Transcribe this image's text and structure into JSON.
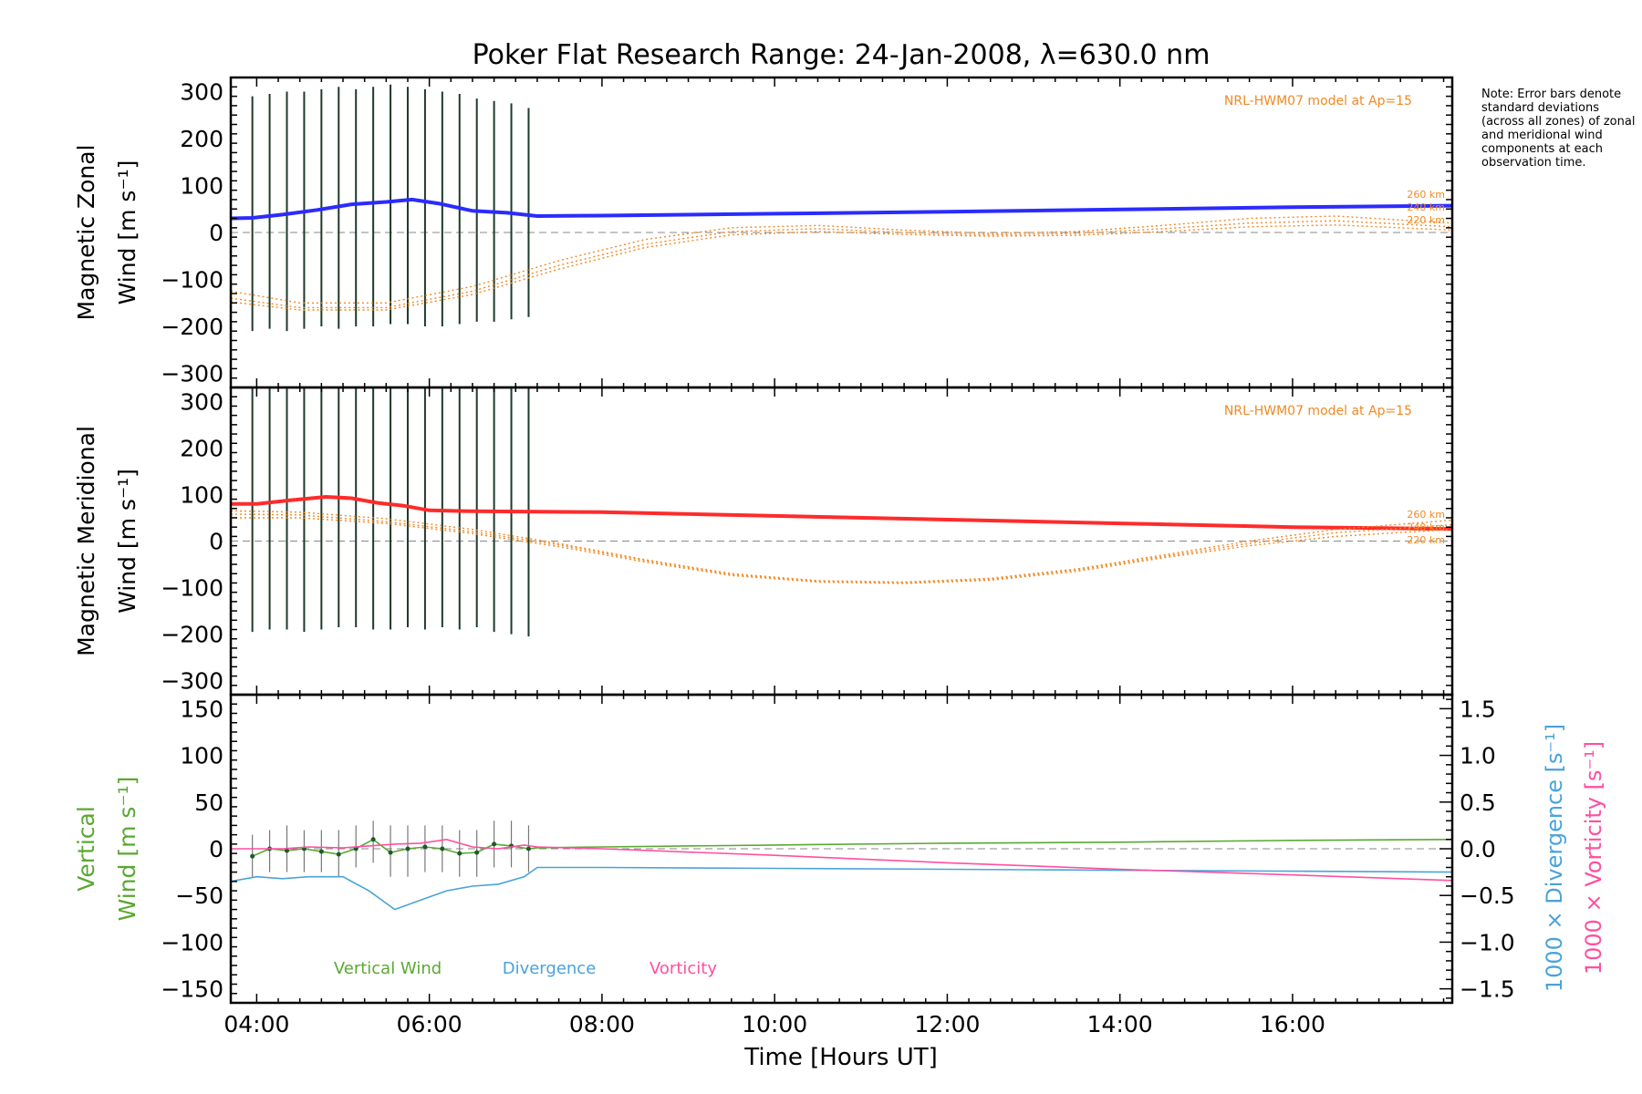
{
  "title": "Poker Flat Research Range: 24-Jan-2008, λ=630.0 nm",
  "note": "Note: Error bars denote standard deviations (across all zones) of zonal and meridional wind components at each observation time.",
  "colors": {
    "zonal": "#2b2bff",
    "meridional": "#ff2b2b",
    "model": "#f08a24",
    "vertical": "#5aa832",
    "divergence": "#4aa3d8",
    "vorticity": "#ff4fa0",
    "errorbar": "#1f3a2a",
    "zero": "#888888"
  },
  "xaxis": {
    "label": "Time [Hours UT]",
    "range": [
      3.7,
      17.85
    ],
    "ticks": [
      4,
      6,
      8,
      10,
      12,
      14,
      16
    ],
    "tick_labels": [
      "04:00",
      "06:00",
      "08:00",
      "10:00",
      "12:00",
      "14:00",
      "16:00"
    ]
  },
  "chart_data": [
    {
      "type": "line",
      "panel": "zonal",
      "ylabel_line1": "Magnetic Zonal",
      "ylabel_line2": "Wind [m s⁻¹]",
      "ylim": [
        -330,
        330
      ],
      "yticks": [
        -300,
        -200,
        -100,
        0,
        100,
        200,
        300
      ],
      "ytick_labels": [
        "−300",
        "−200",
        "−100",
        "0",
        "100",
        "200",
        "300"
      ],
      "model_label": "NRL-HWM07 model at Ap=15",
      "altitude_labels": [
        "260 km",
        "240 km",
        "220 km"
      ],
      "series": [
        {
          "key": "zonal",
          "x": [
            3.7,
            3.95,
            4.3,
            4.7,
            5.1,
            5.5,
            5.8,
            6.1,
            6.5,
            6.9,
            7.25,
            8,
            10,
            12,
            14,
            16,
            17.85
          ],
          "y": [
            30,
            31,
            38,
            48,
            60,
            65,
            70,
            62,
            46,
            42,
            35,
            36,
            40,
            44,
            49,
            54,
            57
          ]
        },
        {
          "key": "model_260",
          "x": [
            3.7,
            4.5,
            5.5,
            6.5,
            7.5,
            8.5,
            9.5,
            10.5,
            11.5,
            12.5,
            13.5,
            14.5,
            15.5,
            16.5,
            17.85
          ],
          "y": [
            -125,
            -150,
            -150,
            -115,
            -60,
            -15,
            10,
            15,
            5,
            -2,
            2,
            15,
            30,
            35,
            20
          ]
        },
        {
          "key": "model_240",
          "x": [
            3.7,
            4.5,
            5.5,
            6.5,
            7.5,
            8.5,
            9.5,
            10.5,
            11.5,
            12.5,
            13.5,
            14.5,
            15.5,
            16.5,
            17.85
          ],
          "y": [
            -140,
            -160,
            -160,
            -125,
            -70,
            -25,
            2,
            8,
            0,
            -5,
            -2,
            8,
            20,
            25,
            12
          ]
        },
        {
          "key": "model_220",
          "x": [
            3.7,
            4.5,
            5.5,
            6.5,
            7.5,
            8.5,
            9.5,
            10.5,
            11.5,
            12.5,
            13.5,
            14.5,
            15.5,
            16.5,
            17.85
          ],
          "y": [
            -148,
            -165,
            -165,
            -132,
            -78,
            -32,
            -5,
            2,
            -4,
            -8,
            -6,
            2,
            12,
            16,
            5
          ]
        }
      ],
      "errorbars": {
        "x": [
          3.95,
          4.15,
          4.35,
          4.55,
          4.75,
          4.95,
          5.15,
          5.35,
          5.55,
          5.75,
          5.95,
          6.15,
          6.35,
          6.55,
          6.75,
          6.95,
          7.15
        ],
        "low": [
          -210,
          -205,
          -210,
          -205,
          -200,
          -205,
          -200,
          -200,
          -195,
          -195,
          -200,
          -200,
          -195,
          -190,
          -190,
          -185,
          -180
        ],
        "high": [
          290,
          295,
          300,
          300,
          305,
          310,
          305,
          310,
          315,
          310,
          305,
          300,
          295,
          285,
          280,
          275,
          265
        ]
      }
    },
    {
      "type": "line",
      "panel": "meridional",
      "ylabel_line1": "Magnetic Meridional",
      "ylabel_line2": "Wind [m s⁻¹]",
      "ylim": [
        -330,
        330
      ],
      "yticks": [
        -300,
        -200,
        -100,
        0,
        100,
        200,
        300
      ],
      "ytick_labels": [
        "−300",
        "−200",
        "−100",
        "0",
        "100",
        "200",
        "300"
      ],
      "model_label": "NRL-HWM07 model at Ap=15",
      "altitude_labels": [
        "260 km",
        "240 km",
        "220 km"
      ],
      "series": [
        {
          "key": "meridional",
          "x": [
            3.7,
            4.0,
            4.4,
            4.8,
            5.1,
            5.4,
            5.7,
            6.0,
            6.5,
            7.25,
            8,
            10,
            12,
            14,
            16,
            17.85
          ],
          "y": [
            80,
            80,
            88,
            95,
            92,
            82,
            76,
            66,
            64,
            63,
            62,
            54,
            46,
            38,
            30,
            26
          ]
        },
        {
          "key": "model_260",
          "x": [
            3.7,
            4.5,
            5.5,
            6.5,
            7.5,
            8.5,
            9.5,
            10.5,
            11.5,
            12.5,
            13.5,
            14.5,
            15.5,
            16.5,
            17.85
          ],
          "y": [
            65,
            62,
            48,
            25,
            -5,
            -40,
            -70,
            -85,
            -88,
            -80,
            -60,
            -30,
            0,
            25,
            45
          ]
        },
        {
          "key": "model_240",
          "x": [
            3.7,
            4.5,
            5.5,
            6.5,
            7.5,
            8.5,
            9.5,
            10.5,
            11.5,
            12.5,
            13.5,
            14.5,
            15.5,
            16.5,
            17.85
          ],
          "y": [
            58,
            56,
            42,
            20,
            -8,
            -42,
            -72,
            -87,
            -90,
            -82,
            -62,
            -33,
            -5,
            18,
            35
          ]
        },
        {
          "key": "model_220",
          "x": [
            3.7,
            4.5,
            5.5,
            6.5,
            7.5,
            8.5,
            9.5,
            10.5,
            11.5,
            12.5,
            13.5,
            14.5,
            15.5,
            16.5,
            17.85
          ],
          "y": [
            50,
            50,
            38,
            16,
            -12,
            -45,
            -74,
            -88,
            -91,
            -84,
            -65,
            -36,
            -10,
            10,
            25
          ]
        }
      ],
      "errorbars": {
        "x": [
          3.95,
          4.15,
          4.35,
          4.55,
          4.75,
          4.95,
          5.15,
          5.35,
          5.55,
          5.75,
          5.95,
          6.15,
          6.35,
          6.55,
          6.75,
          6.95,
          7.15
        ],
        "low": [
          -195,
          -190,
          -190,
          -195,
          -190,
          -185,
          -185,
          -190,
          -190,
          -185,
          -190,
          -185,
          -190,
          -185,
          -195,
          -200,
          -205
        ],
        "high": [
          330,
          330,
          330,
          330,
          330,
          330,
          330,
          330,
          330,
          330,
          330,
          330,
          330,
          330,
          330,
          330,
          330
        ]
      }
    },
    {
      "type": "line",
      "panel": "vertical",
      "ylabel_line1": "Vertical",
      "ylabel_line2": "Wind [m s⁻¹]",
      "ylim": [
        -165,
        165
      ],
      "yticks": [
        -150,
        -100,
        -50,
        0,
        50,
        100,
        150
      ],
      "ytick_labels": [
        "−150",
        "−100",
        "−50",
        "0",
        "50",
        "100",
        "150"
      ],
      "y2label_div": "1000 × Divergence [s⁻¹]",
      "y2label_vort": "1000 × Vorticity [s⁻¹]",
      "y2lim": [
        -1.65,
        1.65
      ],
      "y2ticks": [
        -1.5,
        -1.0,
        -0.5,
        0.0,
        0.5,
        1.0,
        1.5
      ],
      "y2tick_labels": [
        "−1.5",
        "−1.0",
        "−0.5",
        "0.0",
        "0.5",
        "1.0",
        "1.5"
      ],
      "legend": [
        "Vertical Wind",
        "Divergence",
        "Vorticity"
      ],
      "series": [
        {
          "key": "vertical",
          "x": [
            3.95,
            4.15,
            4.35,
            4.55,
            4.75,
            4.95,
            5.15,
            5.35,
            5.55,
            5.75,
            5.95,
            6.15,
            6.35,
            6.55,
            6.75,
            6.95,
            7.15,
            7.25,
            8,
            10,
            12,
            14,
            16,
            17.85
          ],
          "y": [
            -8,
            0,
            -2,
            0,
            -3,
            -6,
            0,
            10,
            -4,
            0,
            2,
            0,
            -5,
            -4,
            5,
            3,
            0,
            1,
            2,
            4,
            6,
            7,
            9,
            10
          ]
        },
        {
          "key": "divergence",
          "x": [
            3.7,
            4.0,
            4.3,
            4.6,
            5.0,
            5.3,
            5.6,
            5.9,
            6.2,
            6.5,
            6.8,
            7.1,
            7.25,
            8,
            10,
            12,
            14,
            16,
            17.85
          ],
          "y": [
            -0.35,
            -0.3,
            -0.32,
            -0.3,
            -0.3,
            -0.45,
            -0.65,
            -0.55,
            -0.45,
            -0.4,
            -0.38,
            -0.3,
            -0.2,
            -0.2,
            -0.21,
            -0.22,
            -0.23,
            -0.24,
            -0.25
          ]
        },
        {
          "key": "vorticity",
          "x": [
            3.7,
            4.0,
            4.3,
            4.6,
            5.0,
            5.3,
            5.6,
            5.9,
            6.2,
            6.5,
            6.8,
            7.1,
            7.25,
            8,
            10,
            12,
            14,
            16,
            17.85
          ],
          "y": [
            0.0,
            0.0,
            0.0,
            0.02,
            0.01,
            0.03,
            0.05,
            0.06,
            0.1,
            0.02,
            0.0,
            0.04,
            0.02,
            0.0,
            -0.07,
            -0.15,
            -0.22,
            -0.28,
            -0.34
          ]
        }
      ],
      "errorbars": {
        "x": [
          3.95,
          4.15,
          4.35,
          4.55,
          4.75,
          4.95,
          5.15,
          5.35,
          5.55,
          5.75,
          5.95,
          6.15,
          6.35,
          6.55,
          6.75,
          6.95,
          7.15
        ],
        "low": [
          -30,
          -25,
          -25,
          -25,
          -25,
          -30,
          -20,
          -15,
          -30,
          -30,
          -25,
          -25,
          -30,
          -30,
          -20,
          -20,
          -25
        ],
        "high": [
          15,
          20,
          25,
          20,
          20,
          20,
          25,
          30,
          25,
          25,
          25,
          25,
          20,
          20,
          30,
          30,
          25
        ]
      }
    }
  ]
}
